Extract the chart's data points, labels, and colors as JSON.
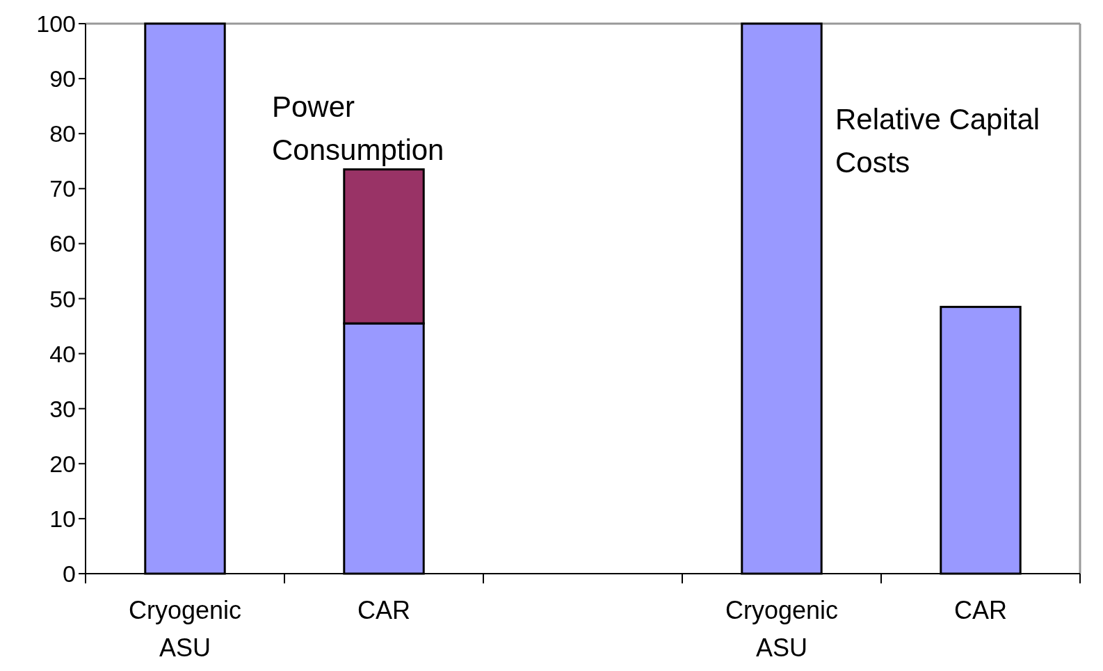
{
  "chart_data": {
    "type": "bar",
    "stacked": true,
    "categories": [
      "Cryogenic\nASU",
      "CAR",
      null,
      "Cryogenic\nASU",
      "CAR"
    ],
    "series": [
      {
        "color": "#9999ff",
        "values": [
          100,
          45.5,
          null,
          100,
          48.5
        ]
      },
      {
        "color": "#993366",
        "values": [
          null,
          28,
          null,
          null,
          null
        ]
      }
    ],
    "ylim": [
      0,
      100
    ],
    "yticks": [
      0,
      10,
      20,
      30,
      40,
      50,
      60,
      70,
      80,
      90,
      100
    ],
    "grid": false,
    "annotations": [
      "Power\nConsumption",
      "Relative Capital\nCosts"
    ]
  }
}
